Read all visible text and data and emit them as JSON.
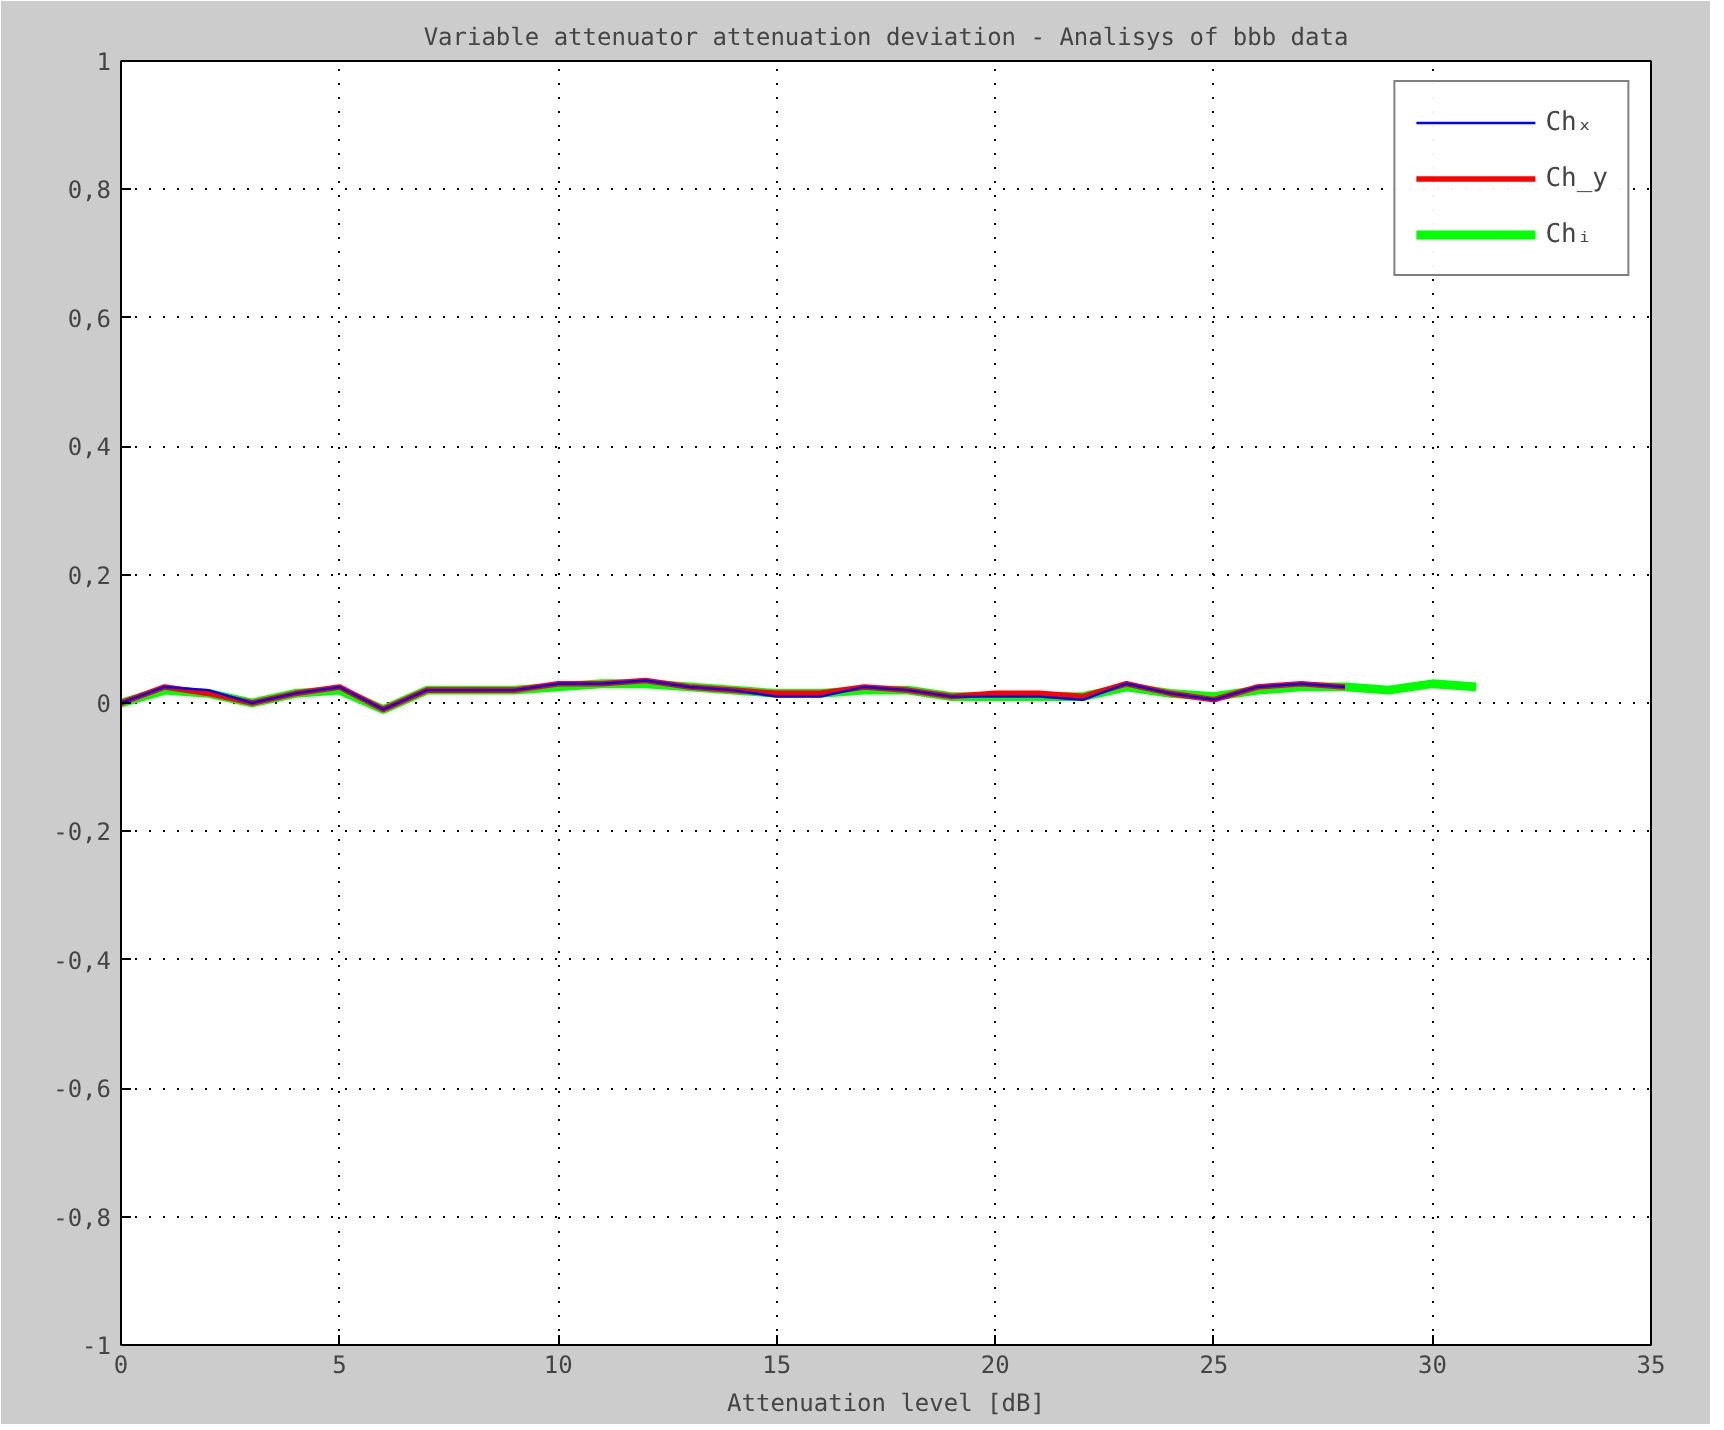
{
  "chart_data": {
    "type": "line",
    "title": "Variable attenuator attenuation deviation - Analisys of bbb data",
    "xlabel": "Attenuation level [dB]",
    "xlim": [
      0,
      35
    ],
    "xticks": [
      0,
      5,
      10,
      15,
      20,
      25,
      30,
      35
    ],
    "ylim": [
      -1,
      1
    ],
    "yticks": [
      -1,
      {
        "value": -0.8,
        "label": "-0,8"
      },
      {
        "value": -0.6,
        "label": "-0,6"
      },
      {
        "value": -0.4,
        "label": "-0,4"
      },
      {
        "value": -0.2,
        "label": "-0,2"
      },
      0,
      {
        "value": 0.2,
        "label": "0,2"
      },
      {
        "value": 0.4,
        "label": "0,4"
      },
      {
        "value": 0.6,
        "label": "0,6"
      },
      {
        "value": 0.8,
        "label": "0,8"
      },
      1
    ],
    "grid": true,
    "legend": "top right",
    "line_style": "solid",
    "series": [
      {
        "name": "Chₓ",
        "color": "#0000ff",
        "x": [
          0,
          1,
          2,
          3,
          4,
          5,
          6,
          7,
          8,
          9,
          10,
          11,
          12,
          13,
          14,
          15,
          16,
          17,
          18,
          19,
          20,
          21,
          22,
          23,
          24,
          25,
          26,
          27,
          28
        ],
        "values": [
          0,
          0.025,
          0.02,
          0.0,
          0.015,
          0.025,
          -0.01,
          0.02,
          0.02,
          0.02,
          0.03,
          0.03,
          0.035,
          0.025,
          0.02,
          0.01,
          0.01,
          0.025,
          0.02,
          0.01,
          0.01,
          0.01,
          0.005,
          0.03,
          0.015,
          0.005,
          0.025,
          0.03,
          0.025
        ]
      },
      {
        "name": "Ch_y",
        "color": "#ff0000",
        "x": [
          0,
          1,
          2,
          3,
          4,
          5,
          6,
          7,
          8,
          9,
          10,
          11,
          12,
          13,
          14,
          15,
          16,
          17,
          18,
          19,
          20,
          21,
          22,
          23,
          24,
          25,
          26,
          27,
          28
        ],
        "values": [
          0,
          0.025,
          0.015,
          0.0,
          0.015,
          0.025,
          -0.01,
          0.02,
          0.02,
          0.02,
          0.03,
          0.03,
          0.035,
          0.025,
          0.02,
          0.015,
          0.015,
          0.025,
          0.02,
          0.01,
          0.015,
          0.015,
          0.01,
          0.03,
          0.015,
          0.005,
          0.025,
          0.03,
          0.025
        ]
      },
      {
        "name": "Chᵢ",
        "color": "#00ff00",
        "x": [
          0,
          1,
          2,
          3,
          4,
          5,
          6,
          7,
          8,
          9,
          10,
          11,
          12,
          13,
          14,
          15,
          16,
          17,
          18,
          19,
          20,
          21,
          22,
          23,
          24,
          25,
          26,
          27,
          28,
          29,
          30,
          31
        ],
        "values": [
          0,
          0.02,
          0.015,
          0.0,
          0.015,
          0.02,
          -0.01,
          0.02,
          0.02,
          0.02,
          0.025,
          0.03,
          0.03,
          0.025,
          0.02,
          0.015,
          0.015,
          0.02,
          0.02,
          0.01,
          0.01,
          0.01,
          0.01,
          0.025,
          0.015,
          0.01,
          0.02,
          0.025,
          0.025,
          0.02,
          0.03,
          0.025
        ]
      }
    ]
  }
}
